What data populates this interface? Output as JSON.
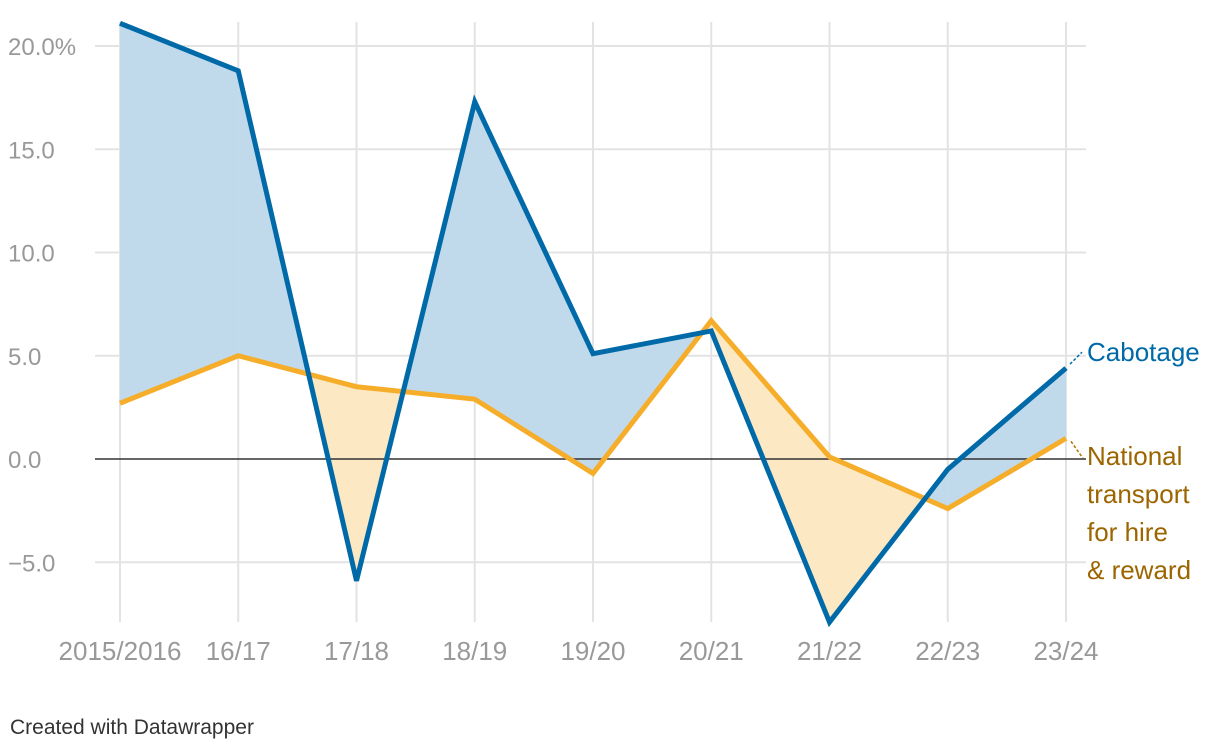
{
  "chart_data": {
    "type": "line",
    "categories": [
      "2015/2016",
      "16/17",
      "17/18",
      "18/19",
      "19/20",
      "20/21",
      "21/22",
      "22/23",
      "23/24"
    ],
    "series": [
      {
        "name": "Cabotage",
        "values": [
          21.1,
          18.8,
          -5.9,
          17.3,
          5.1,
          6.2,
          -7.9,
          -0.5,
          4.4
        ],
        "color": "#006aa9"
      },
      {
        "name": "National transport for hire & reward",
        "label_lines": [
          "National",
          "transport",
          "for hire",
          "& reward"
        ],
        "values": [
          2.7,
          5.0,
          3.5,
          2.9,
          -0.7,
          6.7,
          0.1,
          -2.4,
          1.0
        ],
        "color": "#f5ad2a"
      }
    ],
    "ylim": [
      -8.0,
      21.1
    ],
    "yticks": [
      {
        "value": 20,
        "label": "20.0%"
      },
      {
        "value": 15,
        "label": "15.0"
      },
      {
        "value": 10,
        "label": "10.0"
      },
      {
        "value": 5,
        "label": "5.0"
      },
      {
        "value": 0,
        "label": "0.0"
      },
      {
        "value": -5,
        "label": "−5.0"
      }
    ],
    "fill_above_color": "#c0daec",
    "fill_below_color": "#fde8c4",
    "grid": true,
    "title": "",
    "xlabel": "",
    "ylabel": ""
  },
  "footer": {
    "credit": "Created with Datawrapper"
  }
}
